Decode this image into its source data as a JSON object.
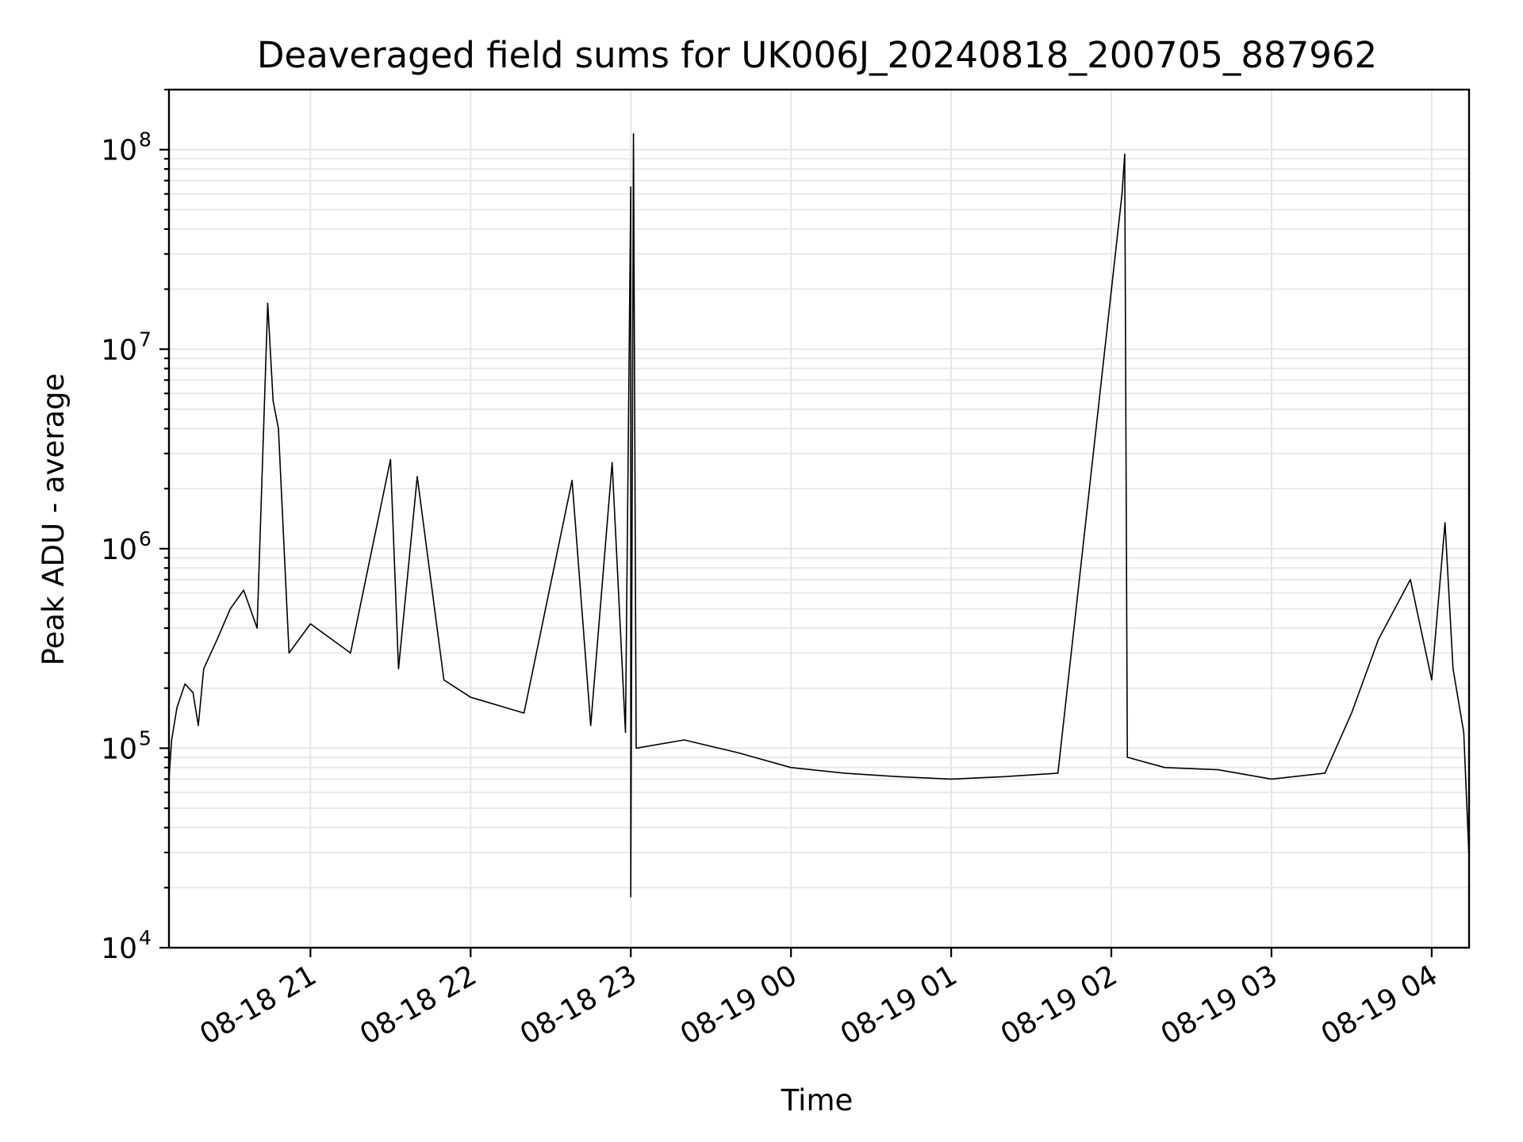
{
  "chart_data": {
    "type": "line",
    "title": "Deaveraged field sums for UK006J_20240818_200705_887962",
    "xlabel": "Time",
    "ylabel": "Peak ADU - average",
    "y_scale": "log",
    "ylim": [
      10000,
      200000000
    ],
    "xlim": [
      "2024-08-18 20:07",
      "2024-08-19 04:14"
    ],
    "grid": "on (major and minor)",
    "line_color": "#000000",
    "x_ticks": [
      {
        "t": "2024-08-18 21:00",
        "label": "08-18 21"
      },
      {
        "t": "2024-08-18 22:00",
        "label": "08-18 22"
      },
      {
        "t": "2024-08-18 23:00",
        "label": "08-18 23"
      },
      {
        "t": "2024-08-19 00:00",
        "label": "08-19 00"
      },
      {
        "t": "2024-08-19 01:00",
        "label": "08-19 01"
      },
      {
        "t": "2024-08-19 02:00",
        "label": "08-19 02"
      },
      {
        "t": "2024-08-19 03:00",
        "label": "08-19 03"
      },
      {
        "t": "2024-08-19 04:00",
        "label": "08-19 04"
      }
    ],
    "y_ticks": [
      {
        "value": 10000,
        "base": "10",
        "exp": "4"
      },
      {
        "value": 100000,
        "base": "10",
        "exp": "5"
      },
      {
        "value": 1000000,
        "base": "10",
        "exp": "6"
      },
      {
        "value": 10000000,
        "base": "10",
        "exp": "7"
      },
      {
        "value": 100000000,
        "base": "10",
        "exp": "8"
      }
    ],
    "series": [
      {
        "values": [
          [
            "2024-08-18 20:07",
            70000
          ],
          [
            "2024-08-18 20:08",
            110000
          ],
          [
            "2024-08-18 20:10",
            160000
          ],
          [
            "2024-08-18 20:13",
            210000
          ],
          [
            "2024-08-18 20:16",
            190000
          ],
          [
            "2024-08-18 20:18",
            130000
          ],
          [
            "2024-08-18 20:20",
            250000
          ],
          [
            "2024-08-18 20:25",
            350000
          ],
          [
            "2024-08-18 20:30",
            500000
          ],
          [
            "2024-08-18 20:35",
            620000
          ],
          [
            "2024-08-18 20:40",
            400000
          ],
          [
            "2024-08-18 20:44",
            17000000
          ],
          [
            "2024-08-18 20:46",
            5500000
          ],
          [
            "2024-08-18 20:48",
            4000000
          ],
          [
            "2024-08-18 20:52",
            300000
          ],
          [
            "2024-08-18 21:00",
            420000
          ],
          [
            "2024-08-18 21:15",
            300000
          ],
          [
            "2024-08-18 21:30",
            2800000
          ],
          [
            "2024-08-18 21:33",
            250000
          ],
          [
            "2024-08-18 21:40",
            2300000
          ],
          [
            "2024-08-18 21:50",
            220000
          ],
          [
            "2024-08-18 22:00",
            180000
          ],
          [
            "2024-08-18 22:20",
            150000
          ],
          [
            "2024-08-18 22:38",
            2200000
          ],
          [
            "2024-08-18 22:45",
            130000
          ],
          [
            "2024-08-18 22:53",
            2700000
          ],
          [
            "2024-08-18 22:58",
            120000
          ],
          [
            "2024-08-18 23:00",
            65000000
          ],
          [
            "2024-08-18 23:00",
            18000
          ],
          [
            "2024-08-18 23:01",
            120000000
          ],
          [
            "2024-08-18 23:02",
            100000
          ],
          [
            "2024-08-18 23:20",
            110000
          ],
          [
            "2024-08-18 23:40",
            95000
          ],
          [
            "2024-08-19 00:00",
            80000
          ],
          [
            "2024-08-19 00:20",
            75000
          ],
          [
            "2024-08-19 00:40",
            72000
          ],
          [
            "2024-08-19 01:00",
            70000
          ],
          [
            "2024-08-19 01:20",
            72000
          ],
          [
            "2024-08-19 01:40",
            75000
          ],
          [
            "2024-08-19 02:04",
            60000000
          ],
          [
            "2024-08-19 02:05",
            95000000
          ],
          [
            "2024-08-19 02:06",
            90000
          ],
          [
            "2024-08-19 02:20",
            80000
          ],
          [
            "2024-08-19 02:40",
            78000
          ],
          [
            "2024-08-19 03:00",
            70000
          ],
          [
            "2024-08-19 03:20",
            75000
          ],
          [
            "2024-08-19 03:30",
            150000
          ],
          [
            "2024-08-19 03:40",
            350000
          ],
          [
            "2024-08-19 03:52",
            700000
          ],
          [
            "2024-08-19 04:00",
            220000
          ],
          [
            "2024-08-19 04:05",
            1350000
          ],
          [
            "2024-08-19 04:08",
            250000
          ],
          [
            "2024-08-19 04:12",
            120000
          ],
          [
            "2024-08-19 04:14",
            28000
          ]
        ]
      }
    ]
  }
}
